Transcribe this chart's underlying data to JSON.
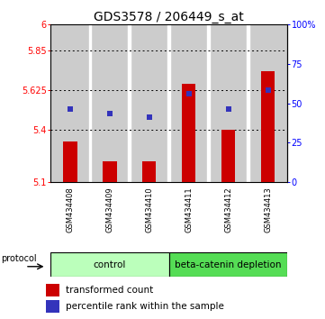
{
  "title": "GDS3578 / 206449_s_at",
  "samples": [
    "GSM434408",
    "GSM434409",
    "GSM434410",
    "GSM434411",
    "GSM434412",
    "GSM434413"
  ],
  "bar_values": [
    5.33,
    5.22,
    5.22,
    5.66,
    5.4,
    5.73
  ],
  "bar_baseline": 5.1,
  "bar_color": "#cc0000",
  "dot_values": [
    5.515,
    5.49,
    5.47,
    5.605,
    5.515,
    5.625
  ],
  "dot_color": "#3333bb",
  "ylim_left": [
    5.1,
    6.0
  ],
  "ylim_right": [
    0,
    100
  ],
  "yticks_left": [
    5.1,
    5.4,
    5.625,
    5.85,
    6.0
  ],
  "yticks_right": [
    0,
    25,
    50,
    75,
    100
  ],
  "ytick_labels_left": [
    "5.1",
    "5.4",
    "5.625",
    "5.85",
    "6"
  ],
  "ytick_labels_right": [
    "0",
    "25",
    "50",
    "75",
    "100%"
  ],
  "dotted_lines": [
    5.85,
    5.625,
    5.4
  ],
  "n_control": 3,
  "n_treatment": 3,
  "group_control_label": "control",
  "group_treatment_label": "beta-catenin depletion",
  "group_control_color": "#bbffbb",
  "group_treatment_color": "#55dd55",
  "protocol_label": "protocol",
  "legend_bar_label": "transformed count",
  "legend_dot_label": "percentile rank within the sample",
  "sample_bg_color": "#cccccc",
  "title_fontsize": 10,
  "tick_fontsize": 7,
  "sample_fontsize": 6,
  "group_fontsize": 7.5,
  "legend_fontsize": 7.5
}
